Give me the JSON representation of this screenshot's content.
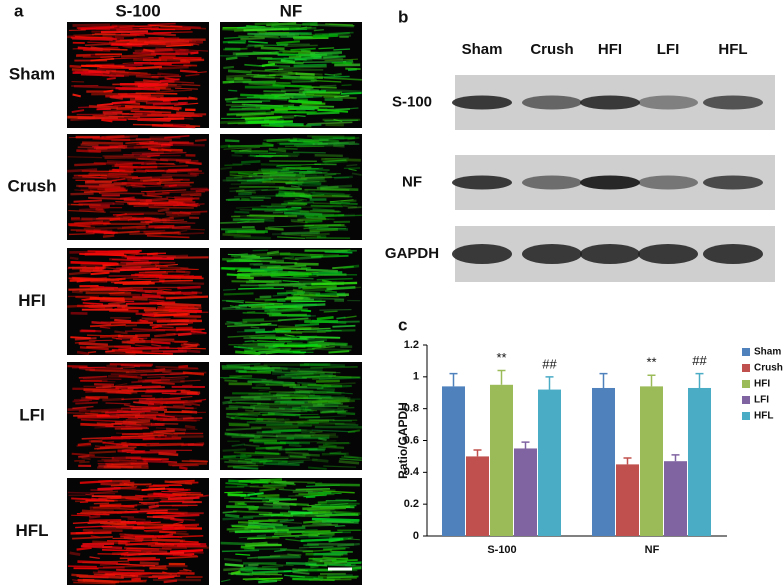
{
  "panel_a": {
    "label": "a",
    "columns": [
      "S-100",
      "NF"
    ],
    "rows": [
      "Sham",
      "Crush",
      "HFI",
      "LFI",
      "HFL"
    ]
  },
  "panel_b": {
    "label": "b",
    "lanes": [
      "Sham",
      "Crush",
      "HFI",
      "LFI",
      "HFL"
    ],
    "rows": [
      "S-100",
      "NF",
      "GAPDH"
    ]
  },
  "chart_data": {
    "label": "c",
    "type": "bar",
    "ylabel": "Ratio/GAPDH",
    "categories": [
      "S-100",
      "NF"
    ],
    "series": [
      {
        "name": "Sham",
        "color": "#4f81bd",
        "values": [
          0.94,
          0.93
        ],
        "errors": [
          0.08,
          0.09
        ]
      },
      {
        "name": "Crush",
        "color": "#c0504d",
        "values": [
          0.5,
          0.45
        ],
        "errors": [
          0.04,
          0.04
        ]
      },
      {
        "name": "HFI",
        "color": "#9bbb59",
        "values": [
          0.95,
          0.94
        ],
        "errors": [
          0.09,
          0.07
        ],
        "annotations": [
          "**",
          "**"
        ]
      },
      {
        "name": "LFI",
        "color": "#8064a2",
        "values": [
          0.55,
          0.47
        ],
        "errors": [
          0.04,
          0.04
        ]
      },
      {
        "name": "HFL",
        "color": "#4bacc6",
        "values": [
          0.92,
          0.93
        ],
        "errors": [
          0.08,
          0.09
        ],
        "annotations": [
          "##",
          "##"
        ]
      }
    ],
    "ylim": [
      0,
      1.2
    ],
    "yticks": [
      0,
      0.2,
      0.4,
      0.6,
      0.8,
      1,
      1.2
    ],
    "legend": "right"
  }
}
